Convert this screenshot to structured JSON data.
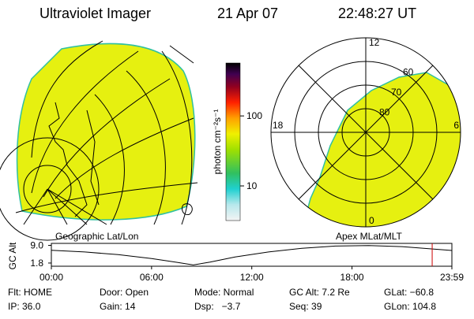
{
  "header": {
    "title": "Ultraviolet Imager",
    "date": "21 Apr 07",
    "time": "22:48:27 UT"
  },
  "colorbar": {
    "label": "photon cm⁻²s⁻¹",
    "clim": [
      3.2,
      570
    ],
    "log": true,
    "ticks": [
      10,
      100
    ]
  },
  "geo_panel": {
    "label": "Geographic Lat/Lon"
  },
  "polar_panel": {
    "label": "Apex MLat/MLT",
    "lat_min": 50,
    "lat_rings": [
      80,
      70,
      60
    ],
    "mlt_ticks": [
      12,
      18,
      6,
      0
    ]
  },
  "altitude_plot": {
    "ylabel": "GC Alt",
    "ylim": [
      0.5,
      9.8
    ],
    "xlim": [
      0,
      23.98
    ],
    "yticks": [
      {
        "value": 9,
        "label": "9.0"
      },
      1.8
    ],
    "xticks": [
      {
        "value": 0,
        "label": "00:00"
      },
      {
        "value": 6,
        "label": "06:00"
      },
      {
        "value": 12,
        "label": "12:00"
      },
      {
        "value": 18,
        "label": "18:00"
      },
      {
        "value": 23.98,
        "label": "23:59"
      }
    ],
    "x": [
      0,
      2,
      4,
      6,
      7.5,
      8.5,
      9.5,
      11,
      13,
      15,
      17,
      19,
      21,
      23.98
    ],
    "values": [
      7.0,
      6.3,
      5.2,
      3.6,
      2.1,
      1.0,
      2.2,
      4.3,
      6.3,
      7.8,
      8.7,
      8.9,
      8.5,
      6.9
    ],
    "color": "#000000",
    "marker_x": 22.8,
    "marker_color": "#cc0000"
  },
  "status": [
    [
      "Flt: HOME",
      "Door: Open",
      "Mode: Normal",
      "GC Alt: 7.2 Re",
      "GLat: −60.8"
    ],
    [
      "IP: 36.0",
      "Gain: 14",
      "Dsp:   −3.7",
      "Seq: 39",
      "GLon: 104.8"
    ]
  ]
}
